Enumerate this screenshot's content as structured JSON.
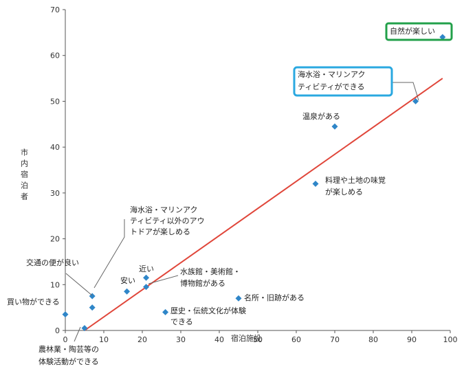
{
  "chart_data": {
    "type": "scatter",
    "xlabel": "宿泊施設",
    "ylabel": "市内宿泊者",
    "xlim": [
      0,
      100
    ],
    "ylim": [
      0,
      70
    ],
    "x_ticks": [
      0,
      10,
      20,
      30,
      40,
      50,
      60,
      70,
      80,
      90,
      100
    ],
    "y_ticks": [
      0,
      10,
      20,
      30,
      40,
      50,
      60,
      70
    ],
    "grid": false,
    "legend": "none",
    "marker_color": "#2f86c8",
    "trendline": {
      "color": "#e0463a",
      "from": [
        5,
        0
      ],
      "to": [
        98,
        55
      ]
    },
    "highlight_colors": {
      "green": "#22a04a",
      "blue": "#2aa8e0"
    },
    "points": [
      {
        "label": "自然が楽しい",
        "x": 98,
        "y": 64,
        "highlight": "green"
      },
      {
        "label": "海水浴・マリンアクティビティができる",
        "x": 91,
        "y": 50,
        "highlight": "blue"
      },
      {
        "label": "温泉がある",
        "x": 70,
        "y": 44.5
      },
      {
        "label": "料理や土地の味覚が楽しめる",
        "x": 65,
        "y": 32
      },
      {
        "label": "海水浴・マリンアクティビティ以外のアウトドアが楽しめる",
        "x": 7,
        "y": 5
      },
      {
        "label": "交通の便が良い",
        "x": 7,
        "y": 7.5
      },
      {
        "label": "近い",
        "x": 21,
        "y": 11.5
      },
      {
        "label": "安い",
        "x": 16,
        "y": 8.5
      },
      {
        "label": "水族館・美術館・博物館がある",
        "x": 21,
        "y": 9.5
      },
      {
        "label": "名所・旧跡がある",
        "x": 45,
        "y": 7
      },
      {
        "label": "歴史・伝統文化が体験できる",
        "x": 26,
        "y": 4
      },
      {
        "label": "買い物ができる",
        "x": 0,
        "y": 3.5
      },
      {
        "label": "農林業・陶芸等の体験活動ができる",
        "x": 5,
        "y": 0.5
      }
    ]
  }
}
